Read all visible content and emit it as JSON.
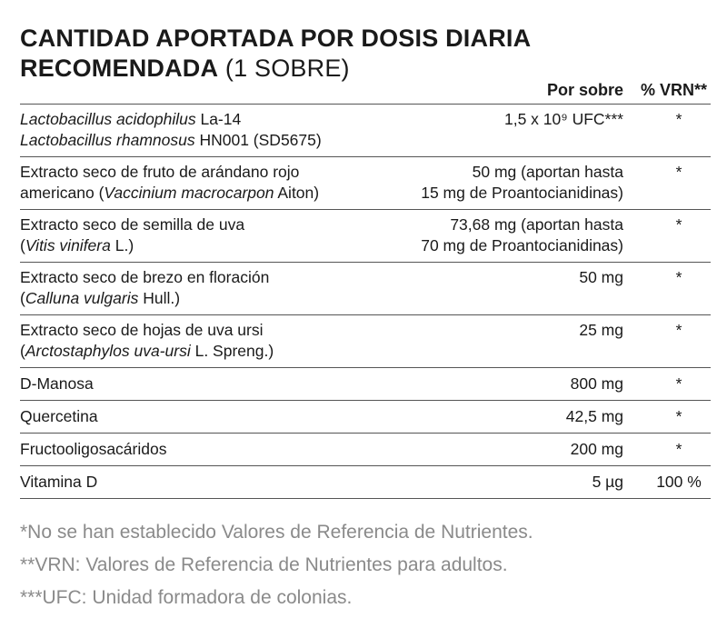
{
  "title": {
    "bold_line1": "CANTIDAD APORTADA POR DOSIS DIARIA",
    "bold_line2": "RECOMENDADA",
    "light_part": " (1 SOBRE)"
  },
  "table": {
    "headers": {
      "amount": "Por sobre",
      "vrn": "% VRN**"
    },
    "rows": [
      {
        "name_lines": [
          [
            {
              "t": "Lactobacillus acidophilus",
              "i": true
            },
            {
              "t": " La-14",
              "i": false
            }
          ],
          [
            {
              "t": "Lactobacillus rhamnosus",
              "i": true
            },
            {
              "t": " HN001 (SD5675)",
              "i": false
            }
          ]
        ],
        "amount_lines": [
          "1,5 x 10⁹ UFC***"
        ],
        "vrn": "*"
      },
      {
        "name_lines": [
          [
            {
              "t": "Extracto seco de fruto de arándano rojo",
              "i": false
            }
          ],
          [
            {
              "t": "americano (",
              "i": false
            },
            {
              "t": "Vaccinium macrocarpon",
              "i": true
            },
            {
              "t": " Aiton)",
              "i": false
            }
          ]
        ],
        "amount_lines": [
          "50 mg (aportan hasta",
          "15 mg de Proantocianidinas)"
        ],
        "vrn": "*"
      },
      {
        "name_lines": [
          [
            {
              "t": "Extracto seco de semilla de uva",
              "i": false
            }
          ],
          [
            {
              "t": "(",
              "i": false
            },
            {
              "t": "Vitis vinifera",
              "i": true
            },
            {
              "t": " L.)",
              "i": false
            }
          ]
        ],
        "amount_lines": [
          "73,68 mg (aportan hasta",
          "70 mg de Proantocianidinas)"
        ],
        "vrn": "*"
      },
      {
        "name_lines": [
          [
            {
              "t": "Extracto seco de brezo en floración",
              "i": false
            }
          ],
          [
            {
              "t": "(",
              "i": false
            },
            {
              "t": "Calluna vulgaris",
              "i": true
            },
            {
              "t": " Hull.)",
              "i": false
            }
          ]
        ],
        "amount_lines": [
          "50 mg"
        ],
        "vrn": "*"
      },
      {
        "name_lines": [
          [
            {
              "t": "Extracto seco de hojas de uva ursi",
              "i": false
            }
          ],
          [
            {
              "t": "(",
              "i": false
            },
            {
              "t": "Arctostaphylos uva-ursi",
              "i": true
            },
            {
              "t": " L. Spreng.)",
              "i": false
            }
          ]
        ],
        "amount_lines": [
          "25 mg"
        ],
        "vrn": "*"
      },
      {
        "name_lines": [
          [
            {
              "t": "D-Manosa",
              "i": false
            }
          ]
        ],
        "amount_lines": [
          "800 mg"
        ],
        "vrn": "*"
      },
      {
        "name_lines": [
          [
            {
              "t": "Quercetina",
              "i": false
            }
          ]
        ],
        "amount_lines": [
          "42,5 mg"
        ],
        "vrn": "*"
      },
      {
        "name_lines": [
          [
            {
              "t": "Fructooligosacáridos",
              "i": false
            }
          ]
        ],
        "amount_lines": [
          "200 mg"
        ],
        "vrn": "*"
      },
      {
        "name_lines": [
          [
            {
              "t": "Vitamina D",
              "i": false
            }
          ]
        ],
        "amount_lines": [
          "5 µg"
        ],
        "vrn": "100 %"
      }
    ]
  },
  "footnotes": [
    "*No se han establecido Valores de Referencia de Nutrientes.",
    "**VRN: Valores de Referencia de Nutrientes para adultos.",
    "***UFC: Unidad formadora de colonias."
  ]
}
